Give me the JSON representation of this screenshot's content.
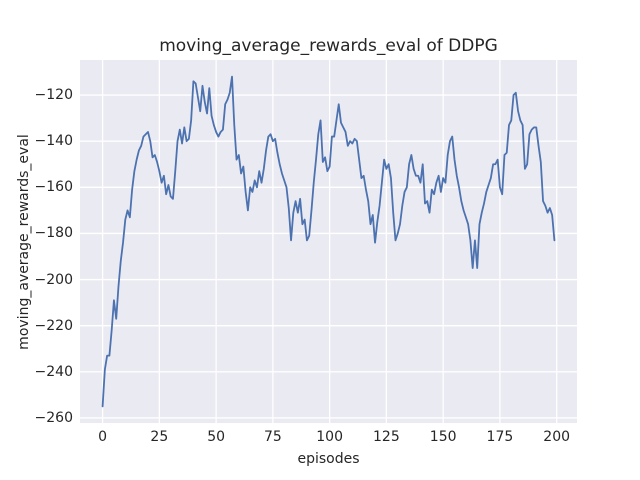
{
  "chart_data": {
    "type": "line",
    "title": "moving_average_rewards_eval of DDPG",
    "xlabel": "episodes",
    "ylabel": "moving_average_rewards_eval",
    "x_start": 0,
    "x_step": 1,
    "values": [
      -255,
      -239,
      -233,
      -233,
      -222,
      -209,
      -217,
      -203,
      -192,
      -184,
      -174,
      -170,
      -173,
      -161,
      -153,
      -148,
      -144,
      -142,
      -138,
      -137,
      -136,
      -140,
      -147,
      -146,
      -149,
      -153,
      -158,
      -155,
      -163,
      -159,
      -164,
      -165,
      -153,
      -140,
      -135,
      -141,
      -134,
      -140,
      -139,
      -131,
      -114,
      -115,
      -121,
      -127,
      -116,
      -123,
      -128,
      -117,
      -129,
      -133,
      -136,
      -138,
      -136,
      -135,
      -124,
      -122,
      -119,
      -112,
      -133,
      -148,
      -146,
      -154,
      -151,
      -162,
      -170,
      -160,
      -162,
      -157,
      -160,
      -153,
      -158,
      -152,
      -144,
      -138,
      -137,
      -140,
      -139,
      -145,
      -150,
      -154,
      -157,
      -160,
      -169,
      -183,
      -171,
      -166,
      -171,
      -165,
      -176,
      -174,
      -183,
      -181,
      -170,
      -158,
      -148,
      -137,
      -131,
      -149,
      -147,
      -153,
      -151,
      -138,
      -138,
      -131,
      -124,
      -132,
      -134,
      -136,
      -142,
      -140,
      -141,
      -139,
      -140,
      -148,
      -156,
      -155,
      -161,
      -166,
      -176,
      -172,
      -184,
      -175,
      -168,
      -158,
      -148,
      -152,
      -150,
      -156,
      -171,
      -183,
      -180,
      -176,
      -168,
      -162,
      -160,
      -150,
      -146,
      -152,
      -155,
      -155,
      -158,
      -150,
      -167,
      -166,
      -171,
      -161,
      -163,
      -158,
      -155,
      -162,
      -156,
      -158,
      -146,
      -140,
      -138,
      -148,
      -155,
      -160,
      -166,
      -170,
      -173,
      -176,
      -183,
      -195,
      -183,
      -195,
      -176,
      -171,
      -167,
      -162,
      -159,
      -156,
      -150,
      -150,
      -148,
      -160,
      -163,
      -146,
      -145,
      -133,
      -131,
      -120,
      -119,
      -127,
      -131,
      -133,
      -152,
      -150,
      -137,
      -135,
      -134,
      -134,
      -142,
      -149,
      -166,
      -168,
      -171,
      -169,
      -172,
      -183
    ],
    "xlim": [
      -9.95,
      208.95
    ],
    "ylim": [
      -262.2,
      -104.8
    ],
    "xticks": [
      0,
      25,
      50,
      75,
      100,
      125,
      150,
      175,
      200
    ],
    "yticks": [
      -260,
      -240,
      -220,
      -200,
      -180,
      -160,
      -140,
      -120
    ],
    "grid": true,
    "legend_position": "none",
    "line_color": "#4c72b0",
    "plot_bg": "#eaeaf2",
    "grid_color": "#ffffff",
    "text_color": "#262626",
    "figure_bg": "#ffffff"
  }
}
